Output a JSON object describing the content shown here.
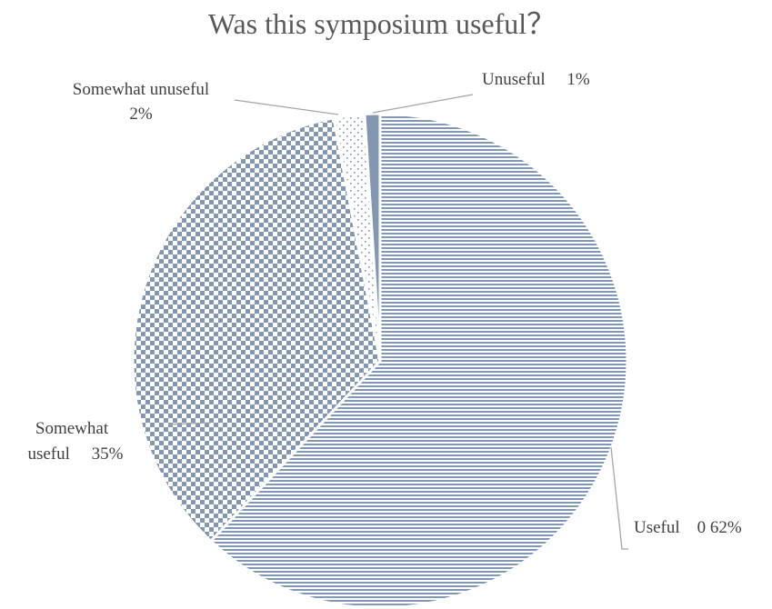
{
  "chart_data": {
    "type": "pie",
    "title": "Was this symposium useful？",
    "slices": [
      {
        "name": "Useful",
        "value": 62,
        "label": "Useful　0 62%",
        "pattern": "horizontal-lines"
      },
      {
        "name": "Somewhat useful",
        "value": 35,
        "label_line1": "Somewhat",
        "label_line2": "useful　 35%",
        "pattern": "checkerboard"
      },
      {
        "name": "Somewhat unuseful",
        "value": 2,
        "label_line1": "Somewhat unuseful",
        "label_line2": "2%",
        "pattern": "dots"
      },
      {
        "name": "Unuseful",
        "value": 1,
        "label": "Unuseful　 1%",
        "pattern": "solid"
      }
    ],
    "start_angle_deg": 0,
    "direction": "clockwise",
    "data_labels": "outside with leader lines",
    "legend": "none",
    "colors": {
      "fill": "#8497b0",
      "background": "#ffffff",
      "leader_line": "#a6a6a6",
      "text": "#404040"
    }
  }
}
